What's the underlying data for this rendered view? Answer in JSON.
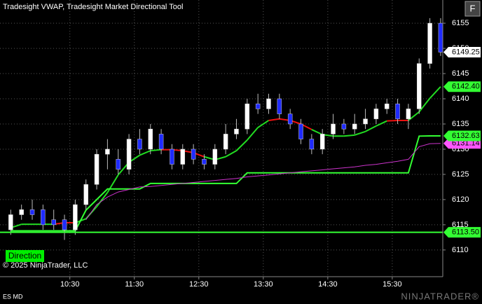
{
  "chart_data": {
    "type": "candlestick",
    "title": "Tradesight VWAP, Tradesight Market Directional Tool",
    "copyright": "© 2025 NinjaTrader, LLC",
    "direction_label": "Direction",
    "instrument": "ES MD",
    "watermark": "NINJATRADER®",
    "corner_button": "F",
    "x": [
      "09:35",
      "09:45",
      "09:55",
      "10:05",
      "10:15",
      "10:25",
      "10:35",
      "10:45",
      "10:55",
      "11:05",
      "11:15",
      "11:25",
      "11:35",
      "11:45",
      "11:55",
      "12:05",
      "12:15",
      "12:25",
      "12:35",
      "12:45",
      "12:55",
      "13:05",
      "13:15",
      "13:25",
      "13:35",
      "13:45",
      "13:55",
      "14:05",
      "14:15",
      "14:25",
      "14:35",
      "14:45",
      "14:55",
      "15:05",
      "15:15",
      "15:25",
      "15:35",
      "15:45",
      "15:55",
      "16:05",
      "16:15"
    ],
    "open": [
      6114,
      6117,
      6118,
      6118,
      6116,
      6116,
      6114,
      6119,
      6123,
      6129,
      6128,
      6126,
      6132,
      6130,
      6133,
      6130,
      6127,
      6130,
      6128,
      6127,
      6130,
      6133,
      6134,
      6139,
      6138,
      6140,
      6137,
      6135,
      6132,
      6130,
      6133,
      6135,
      6134,
      6135,
      6136,
      6138,
      6139,
      6136,
      6138,
      6147,
      6155
    ],
    "high": [
      6118,
      6119,
      6120,
      6119,
      6118,
      6117,
      6120,
      6124,
      6130,
      6132,
      6130,
      6133,
      6134,
      6135,
      6134,
      6131,
      6131,
      6131,
      6129,
      6131,
      6135,
      6136,
      6140,
      6141,
      6141,
      6141,
      6138,
      6136,
      6133,
      6134,
      6137,
      6136,
      6137,
      6138,
      6139,
      6140,
      6140,
      6139,
      6148,
      6156,
      6156
    ],
    "low": [
      6113,
      6116,
      6116,
      6114,
      6114,
      6112,
      6113,
      6118,
      6122,
      6126,
      6125,
      6125,
      6129,
      6129,
      6129,
      6126,
      6126,
      6127,
      6126,
      6126,
      6129,
      6132,
      6133,
      6137,
      6137,
      6136,
      6134,
      6131,
      6129,
      6129,
      6132,
      6133,
      6133,
      6134,
      6135,
      6137,
      6135,
      6134,
      6137,
      6146,
      6148.5
    ],
    "close": [
      6117,
      6118,
      6117,
      6115,
      6115,
      6114,
      6119,
      6123,
      6129,
      6130,
      6126,
      6132,
      6130,
      6134,
      6130,
      6127,
      6130,
      6128,
      6127,
      6130,
      6133,
      6134,
      6139,
      6138,
      6140,
      6137,
      6135,
      6132,
      6130,
      6133,
      6135,
      6134,
      6135,
      6136,
      6138,
      6139,
      6136,
      6138,
      6147,
      6155,
      6149.25
    ],
    "up_color": "#ffffff",
    "down_color": "#1f2bff",
    "lines": [
      {
        "color": "#22dd22",
        "alt_color": "#ee1111",
        "values": [
          6114.4,
          6115.1,
          6115.1,
          6115.1,
          6115.1,
          6115.4,
          6115.4,
          6116.2,
          6118.6,
          6121.4,
          6124.9,
          6127.4,
          6128.8,
          6129.7,
          6129.9,
          6129.9,
          6129.7,
          6129.3,
          6128.5,
          6127.9,
          6128.5,
          6129.7,
          6131.8,
          6134.3,
          6135.7,
          6136,
          6135.7,
          6135,
          6133.9,
          6132.9,
          6132.6,
          6132.6,
          6132.8,
          6133.5,
          6134.6,
          6135.6,
          6135.7,
          6135.7,
          6137.4,
          6140.1,
          6142.4
        ],
        "alt": [
          false,
          false,
          false,
          false,
          false,
          true,
          true,
          false,
          false,
          false,
          false,
          false,
          false,
          false,
          false,
          true,
          true,
          true,
          true,
          false,
          false,
          false,
          false,
          false,
          false,
          true,
          true,
          true,
          true,
          false,
          false,
          false,
          false,
          false,
          false,
          false,
          true,
          true,
          false,
          false,
          false
        ]
      },
      {
        "color": "#33ff33",
        "values": [
          6113.8,
          6113.8,
          6113.8,
          6113.8,
          6113.8,
          6113.8,
          6113.8,
          6117.9,
          6120,
          6122.1,
          6122.1,
          6122.1,
          6122.1,
          6123.2,
          6123.2,
          6123.2,
          6123.2,
          6123.2,
          6123.2,
          6123.2,
          6123.2,
          6123.2,
          6125.3,
          6125.3,
          6125.3,
          6125.3,
          6125.3,
          6125.3,
          6125.3,
          6125.3,
          6125.3,
          6125.3,
          6125.3,
          6125.3,
          6125.3,
          6125.3,
          6125.3,
          6125.3,
          6132.6,
          6132.63,
          6132.63
        ]
      },
      {
        "color": "#cc33cc",
        "values": [
          null,
          null,
          null,
          null,
          null,
          null,
          null,
          6116,
          6119,
          6120.5,
          6121.5,
          6122,
          6122.5,
          6122.6,
          6122.8,
          6123,
          6123.2,
          6123.4,
          6123.6,
          6123.8,
          6124,
          6124.2,
          6124.5,
          6124.7,
          6124.9,
          6125.1,
          6125.3,
          6125.5,
          6125.7,
          6125.9,
          6126.1,
          6126.3,
          6126.5,
          6126.8,
          6127,
          6127.3,
          6127.6,
          6128,
          6130.5,
          6131.1,
          6131.14
        ]
      }
    ],
    "price_markers": [
      {
        "value": 6131.14,
        "color": "#ff55ff"
      },
      {
        "value": 6149.25,
        "color": "#ffffff"
      },
      {
        "value": 6142.4,
        "label": "6142.40",
        "color": "#33ff33"
      },
      {
        "value": 6132.63,
        "color": "#33ff33"
      },
      {
        "value": 6113.5,
        "label": "6113.50",
        "color": "#33ff33",
        "line": true
      }
    ],
    "xlim": [
      "09:25",
      "16:17"
    ],
    "xticks": [
      "10:30",
      "11:30",
      "12:30",
      "13:30",
      "14:30",
      "15:30"
    ],
    "ylim": [
      6104.7,
      6159.6
    ],
    "yticks": [
      6110,
      6115,
      6120,
      6125,
      6130,
      6135,
      6140,
      6145,
      6150,
      6155
    ],
    "grid": true
  }
}
